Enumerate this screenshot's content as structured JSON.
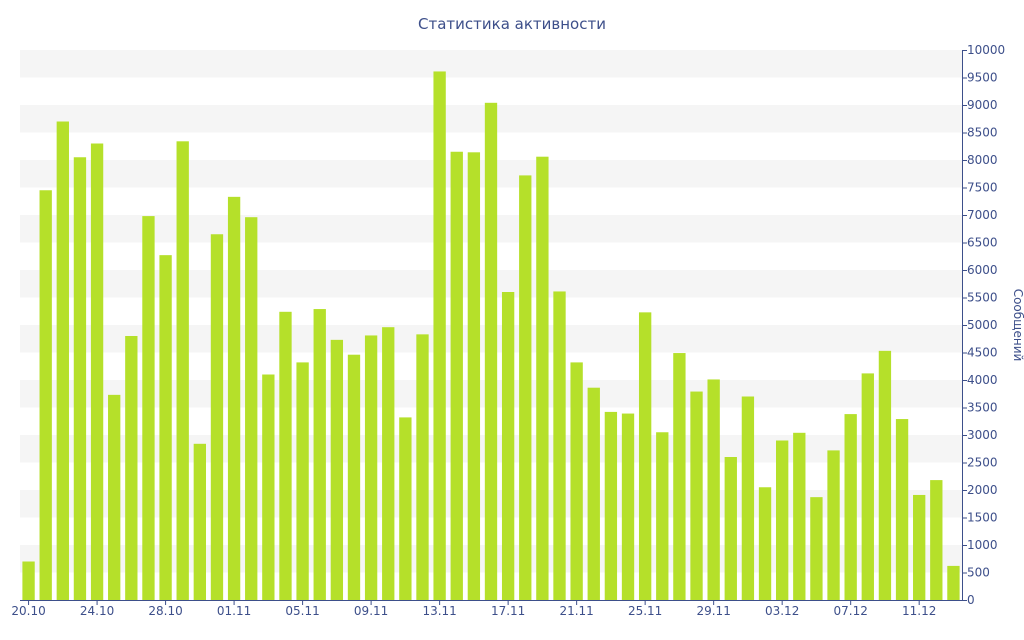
{
  "chart_data": {
    "type": "bar",
    "title": "Статистика активности",
    "ylabel": "Сообщений",
    "xlabel": "",
    "ylim": [
      0,
      10000
    ],
    "y_ticks": [
      0,
      500,
      1000,
      1500,
      2000,
      2500,
      3000,
      3500,
      4000,
      4500,
      5000,
      5500,
      6000,
      6500,
      7000,
      7500,
      8000,
      8500,
      9000,
      9500,
      10000
    ],
    "y_axis_side": "right",
    "grid": true,
    "bar_color": "#b5e02a",
    "band_color": "#f5f5f5",
    "axis_color": "#3d4f8a",
    "categories": [
      "20.10",
      "21.10",
      "22.10",
      "23.10",
      "24.10",
      "25.10",
      "26.10",
      "27.10",
      "28.10",
      "29.10",
      "30.10",
      "31.10",
      "01.11",
      "02.11",
      "03.11",
      "04.11",
      "05.11",
      "06.11",
      "07.11",
      "08.11",
      "09.11",
      "10.11",
      "11.11",
      "12.11",
      "13.11",
      "14.11",
      "15.11",
      "16.11",
      "17.11",
      "18.11",
      "19.11",
      "20.11",
      "21.11",
      "22.11",
      "23.11",
      "24.11",
      "25.11",
      "26.11",
      "27.11",
      "28.11",
      "29.11",
      "30.11",
      "01.12",
      "02.12",
      "03.12",
      "04.12",
      "05.12",
      "06.12",
      "07.12",
      "08.12",
      "09.12",
      "10.12",
      "11.12",
      "12.12",
      "13.12"
    ],
    "x_tick_labels": [
      "20.10",
      "24.10",
      "28.10",
      "01.11",
      "05.11",
      "09.11",
      "13.11",
      "17.11",
      "21.11",
      "25.11",
      "29.11",
      "03.12",
      "07.12",
      "11.12"
    ],
    "values": [
      700,
      7450,
      8700,
      8050,
      8300,
      3730,
      4800,
      6980,
      6270,
      8340,
      2840,
      6650,
      7330,
      6960,
      4100,
      5240,
      4320,
      5290,
      4730,
      4460,
      4810,
      4960,
      3320,
      4830,
      9610,
      8150,
      8140,
      9040,
      5600,
      7720,
      8060,
      5610,
      4320,
      3860,
      3420,
      3390,
      5230,
      3050,
      4490,
      3790,
      4010,
      2600,
      3700,
      2050,
      2900,
      3040,
      1870,
      2720,
      3380,
      4120,
      4530,
      3290,
      1910,
      2180,
      620
    ]
  }
}
